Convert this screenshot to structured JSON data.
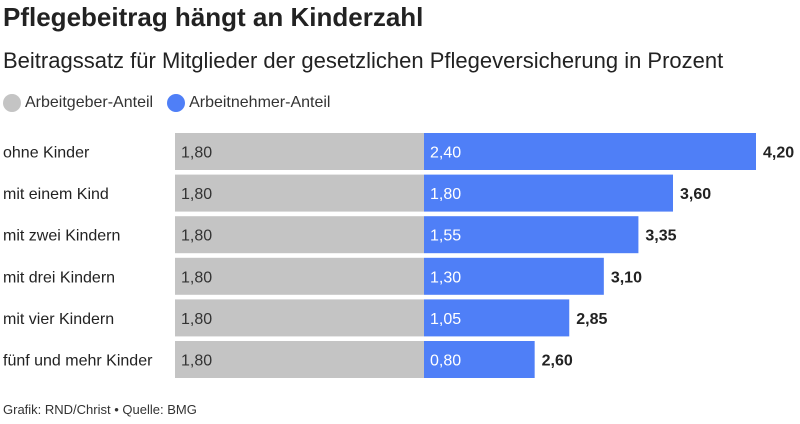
{
  "chart_data": {
    "type": "bar",
    "orientation": "horizontal",
    "stacked": true,
    "title": "Pflegebeitrag hängt an Kinderzahl",
    "subtitle": "Beitragssatz für Mitglieder der gesetzlichen Pflegeversicherung in Prozent",
    "categories": [
      "ohne Kinder",
      "mit einem Kind",
      "mit zwei Kindern",
      "mit drei Kindern",
      "mit vier Kindern",
      "fünf und mehr Kinder"
    ],
    "series": [
      {
        "name": "Arbeitgeber-Anteil",
        "color": "#c4c4c4",
        "values": [
          1.8,
          1.8,
          1.8,
          1.8,
          1.8,
          1.8
        ],
        "labels": [
          "1,80",
          "1,80",
          "1,80",
          "1,80",
          "1,80",
          "1,80"
        ]
      },
      {
        "name": "Arbeitnehmer-Anteil",
        "color": "#4f7ff7",
        "values": [
          2.4,
          1.8,
          1.55,
          1.3,
          1.05,
          0.8
        ],
        "labels": [
          "2,40",
          "1,80",
          "1,55",
          "1,30",
          "1,05",
          "0,80"
        ]
      }
    ],
    "totals": [
      "4,20",
      "3,60",
      "3,35",
      "3,10",
      "2,85",
      "2,60"
    ],
    "xlim": [
      0,
      4.2
    ],
    "grid": false,
    "legend": "top-left"
  },
  "footer": "Grafik: RND/Christ • Quelle: BMG"
}
